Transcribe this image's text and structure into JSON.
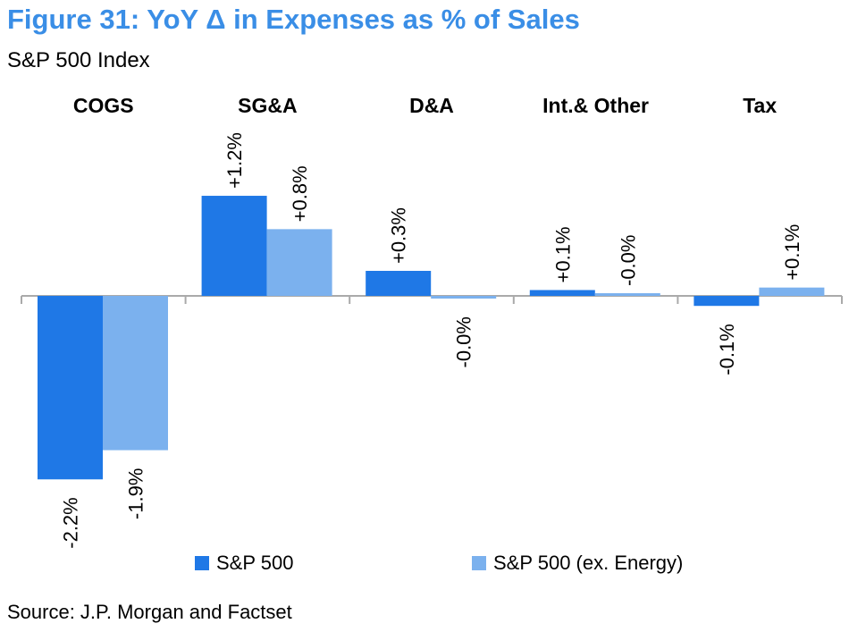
{
  "title": "Figure 31: YoY Δ in Expenses as % of Sales",
  "subtitle": "S&P 500 Index",
  "source": "Source: J.P. Morgan and Factset",
  "colors": {
    "sp500": "#1f78e6",
    "sp500_ex_energy": "#7bb1ee",
    "title": "#3a8ee6",
    "axis": "#aaaaaa"
  },
  "chart_data": {
    "type": "bar",
    "categories": [
      "COGS",
      "SG&A",
      "D&A",
      "Int.& Other",
      "Tax"
    ],
    "series": [
      {
        "name": "S&P 500",
        "values": [
          -2.2,
          1.2,
          0.3,
          0.07,
          -0.12
        ],
        "labels": [
          "-2.2%",
          "+1.2%",
          "+0.3%",
          "+0.1%",
          "-0.1%"
        ]
      },
      {
        "name": "S&P 500 (ex. Energy)",
        "values": [
          -1.85,
          0.8,
          -0.03,
          0.0,
          0.1
        ],
        "labels": [
          "-1.9%",
          "+0.8%",
          "-0.0%",
          "-0.0%",
          "+0.1%"
        ]
      }
    ],
    "xlabel": "",
    "ylabel": "",
    "ylim": [
      -2.2,
      1.2
    ],
    "grid": false,
    "legend_position": "bottom"
  }
}
